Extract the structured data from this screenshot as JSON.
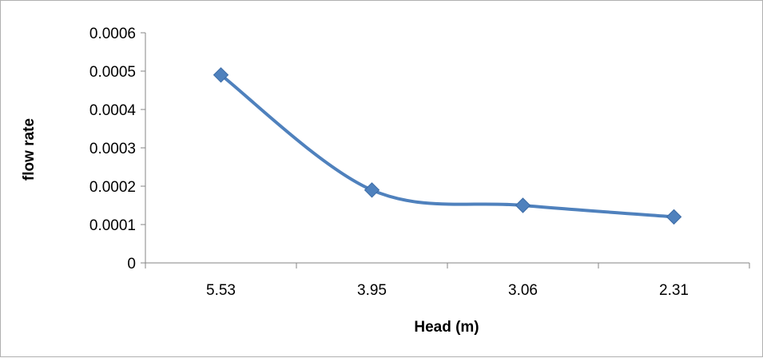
{
  "chart_data": {
    "type": "line",
    "title": "",
    "xlabel": "Head (m)",
    "ylabel": "flow rate",
    "categories": [
      "5.53",
      "3.95",
      "3.06",
      "2.31"
    ],
    "series": [
      {
        "values": [
          0.00049,
          0.00019,
          0.00015,
          0.00012
        ],
        "color": "#4f81bd",
        "marker": "diamond",
        "smooth": true
      }
    ],
    "ylim": [
      0,
      0.0006
    ],
    "yticks": [
      0,
      0.0001,
      0.0002,
      0.0003,
      0.0004,
      0.0005,
      0.0006
    ],
    "ytick_labels": [
      "0",
      "0.0001",
      "0.0002",
      "0.0003",
      "0.0004",
      "0.0005",
      "0.0006"
    ],
    "grid": false,
    "legend": "none",
    "colors": {
      "axis": "#868686",
      "series": "#4f81bd",
      "marker_edge": "#3a6aa5"
    }
  }
}
